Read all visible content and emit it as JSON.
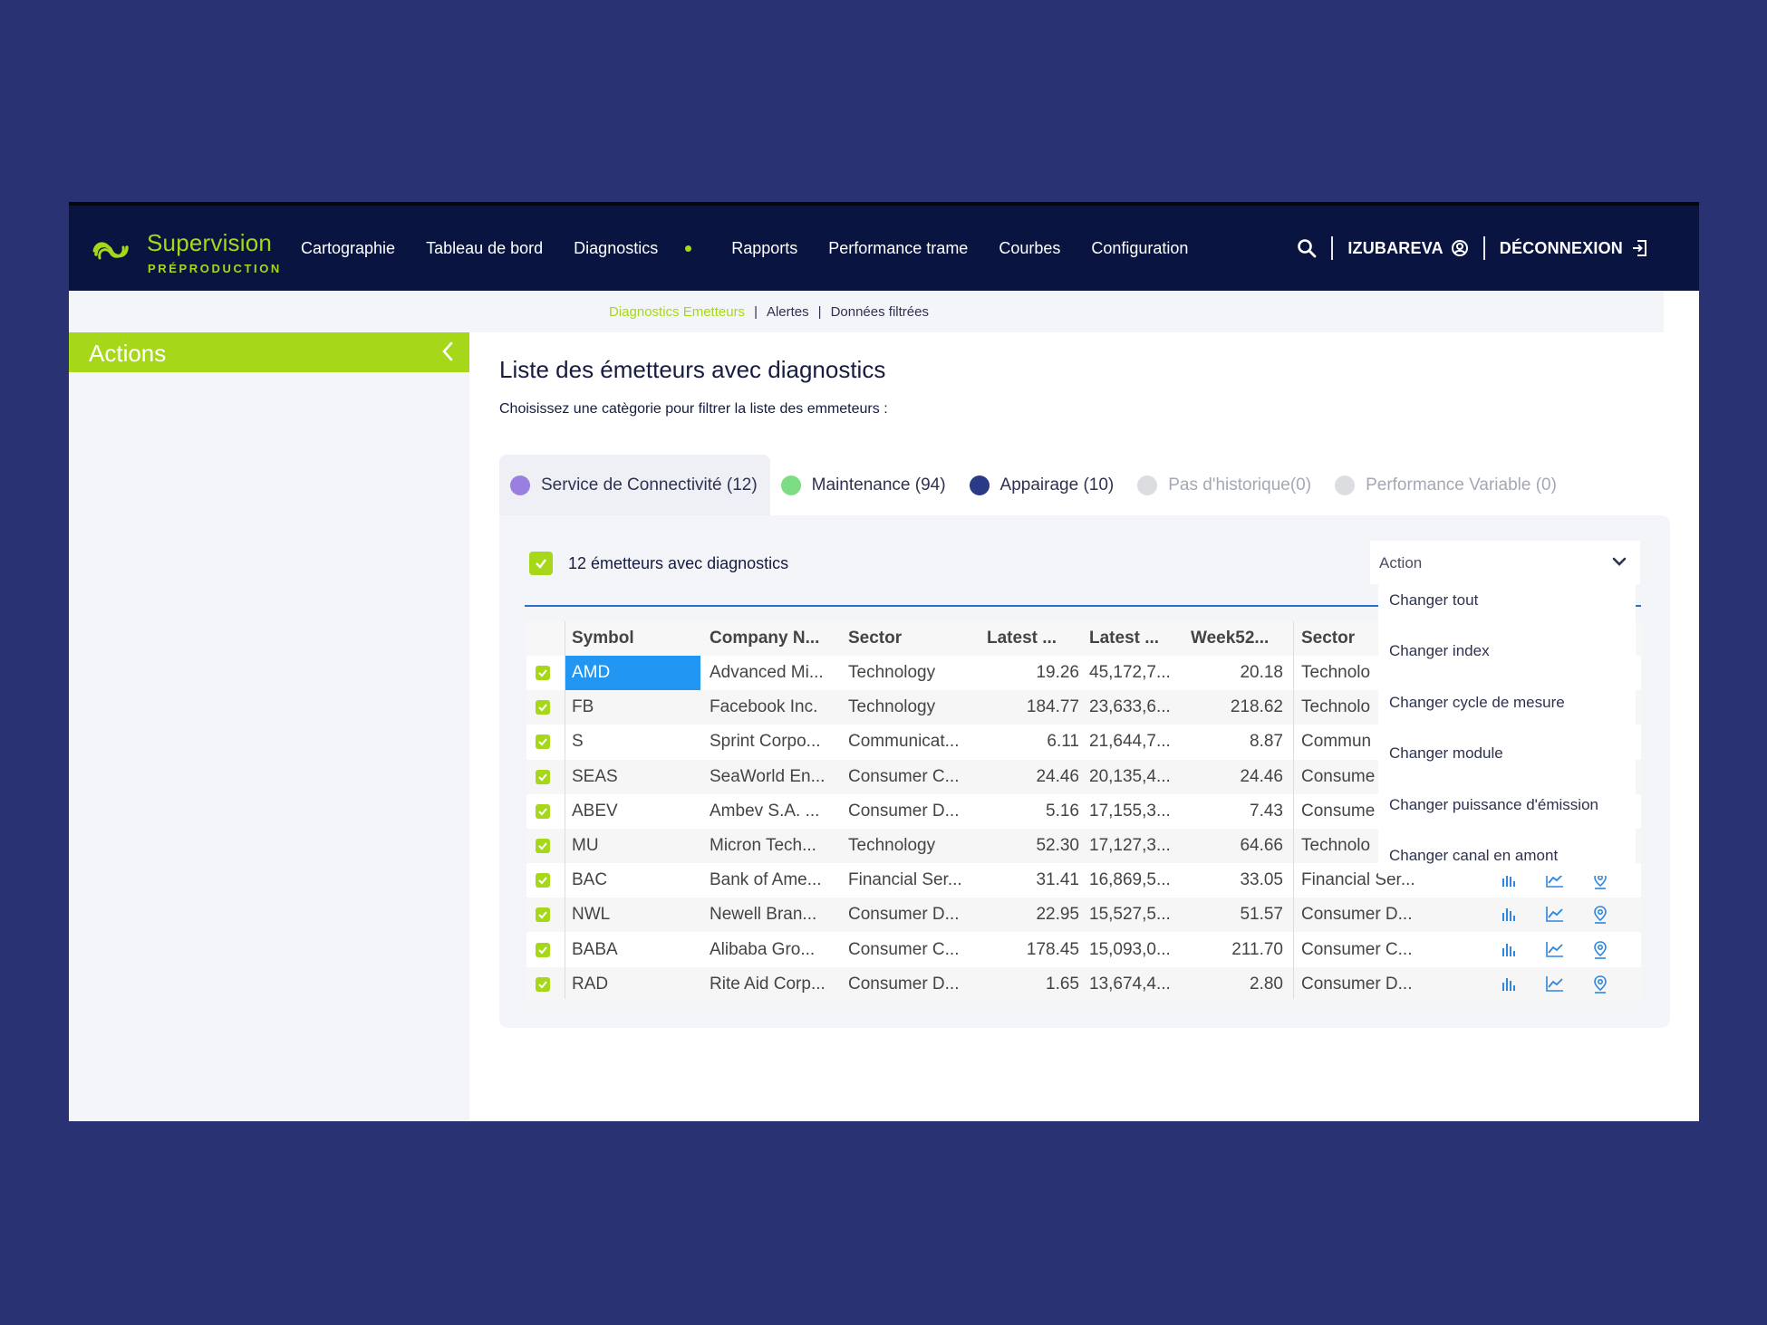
{
  "brand": {
    "name": "Supervision",
    "env": "PRÉPRODUCTION"
  },
  "nav": [
    "Cartographie",
    "Tableau de bord",
    "Diagnostics",
    "Rapports",
    "Performance trame",
    "Courbes",
    "Configuration"
  ],
  "user": {
    "name": "IZUBAREVA",
    "logout": "DÉCONNEXION"
  },
  "subnav": {
    "active": "Diagnostics Emetteurs",
    "items": [
      "Alertes",
      "Données filtrées"
    ]
  },
  "sidebar": {
    "title": "Actions"
  },
  "page": {
    "title": "Liste des émetteurs avec diagnostics",
    "subtitle": "Choisissez une catègorie pour filtrer la liste des emmeteurs :"
  },
  "tabs": [
    {
      "label": "Service de Connectivité (12)",
      "color": "#9b7fe0",
      "active": true
    },
    {
      "label": "Maintenance (94)",
      "color": "#7ddd84"
    },
    {
      "label": "Appairage (10)",
      "color": "#2a3a86"
    },
    {
      "label": "Pas d'historique(0)",
      "color": "#dcdde1",
      "muted": true
    },
    {
      "label": "Performance Variable (0)",
      "color": "#dcdde1",
      "muted": true
    }
  ],
  "panel": {
    "select_all_label": "12 émetteurs avec diagnostics",
    "action_label": "Action"
  },
  "table": {
    "headers": [
      "Symbol",
      "Company N...",
      "Sector",
      "Latest ...",
      "Latest ...",
      "Week52...",
      "Sector"
    ],
    "rows": [
      {
        "symbol": "AMD",
        "company": "Advanced Mi...",
        "sector": "Technology",
        "latest1": "19.26",
        "latest2": "45,172,7...",
        "week52": "20.18",
        "sector2": "Technolo"
      },
      {
        "symbol": "FB",
        "company": "Facebook Inc.",
        "sector": "Technology",
        "latest1": "184.77",
        "latest2": "23,633,6...",
        "week52": "218.62",
        "sector2": "Technolo"
      },
      {
        "symbol": "S",
        "company": "Sprint Corpo...",
        "sector": "Communicat...",
        "latest1": "6.11",
        "latest2": "21,644,7...",
        "week52": "8.87",
        "sector2": "Commun"
      },
      {
        "symbol": "SEAS",
        "company": "SeaWorld En...",
        "sector": "Consumer C...",
        "latest1": "24.46",
        "latest2": "20,135,4...",
        "week52": "24.46",
        "sector2": "Consume"
      },
      {
        "symbol": "ABEV",
        "company": "Ambev S.A. ...",
        "sector": "Consumer D...",
        "latest1": "5.16",
        "latest2": "17,155,3...",
        "week52": "7.43",
        "sector2": "Consume"
      },
      {
        "symbol": "MU",
        "company": "Micron Tech...",
        "sector": "Technology",
        "latest1": "52.30",
        "latest2": "17,127,3...",
        "week52": "64.66",
        "sector2": "Technolo"
      },
      {
        "symbol": "BAC",
        "company": "Bank of Ame...",
        "sector": "Financial Ser...",
        "latest1": "31.41",
        "latest2": "16,869,5...",
        "week52": "33.05",
        "sector2": "Financial Ser..."
      },
      {
        "symbol": "NWL",
        "company": "Newell Bran...",
        "sector": "Consumer D...",
        "latest1": "22.95",
        "latest2": "15,527,5...",
        "week52": "51.57",
        "sector2": "Consumer D..."
      },
      {
        "symbol": "BABA",
        "company": "Alibaba Gro...",
        "sector": "Consumer C...",
        "latest1": "178.45",
        "latest2": "15,093,0...",
        "week52": "211.70",
        "sector2": "Consumer C..."
      },
      {
        "symbol": "RAD",
        "company": "Rite Aid Corp...",
        "sector": "Consumer D...",
        "latest1": "1.65",
        "latest2": "13,674,4...",
        "week52": "2.80",
        "sector2": "Consumer D..."
      }
    ]
  },
  "dropdown": [
    "Changer tout",
    "Changer index",
    "Changer cycle de mesure",
    "Changer module",
    "Changer puissance d'émission",
    "Changer canal en amont"
  ],
  "colors": {
    "accent": "#a6d819",
    "navy": "#091441",
    "background": "#293373",
    "selection": "#2196f3"
  }
}
